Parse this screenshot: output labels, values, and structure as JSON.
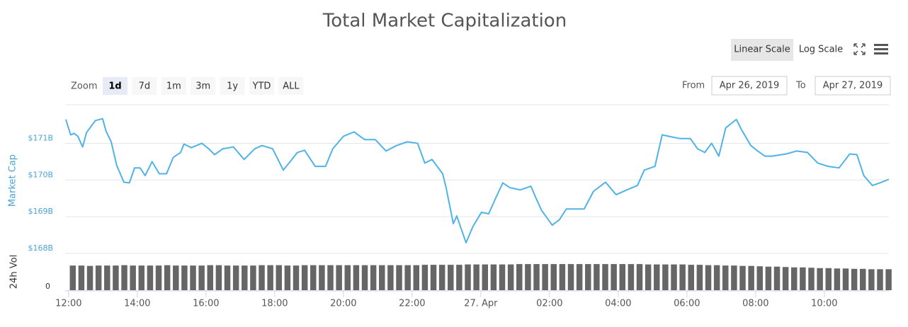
{
  "chart_data": [
    {
      "type": "line",
      "title": "Total Market Capitalization",
      "y_label": "Market Cap",
      "color": "#4fb3e6",
      "grid": true,
      "x": [
        11.92,
        12.06,
        12.16,
        12.27,
        12.41,
        12.52,
        12.78,
        12.99,
        13.09,
        13.24,
        13.4,
        13.61,
        13.77,
        13.92,
        14.08,
        14.23,
        14.43,
        14.64,
        14.85,
        15.05,
        15.26,
        15.36,
        15.57,
        15.88,
        16.08,
        16.25,
        16.49,
        16.8,
        17.11,
        17.42,
        17.63,
        17.94,
        18.25,
        18.45,
        18.66,
        18.87,
        19.18,
        19.48,
        19.69,
        20.0,
        20.31,
        20.62,
        20.93,
        21.24,
        21.55,
        21.86,
        22.16,
        22.37,
        22.58,
        22.89,
        22.99,
        23.2,
        23.3,
        23.57,
        23.77,
        24.02,
        24.23,
        24.43,
        24.64,
        24.85,
        25.15,
        25.46,
        25.61,
        25.77,
        26.08,
        26.29,
        26.49,
        26.8,
        27.01,
        27.28,
        27.63,
        27.94,
        28.25,
        28.56,
        28.76,
        29.07,
        29.28,
        29.48,
        29.79,
        30.1,
        30.31,
        30.52,
        30.72,
        30.93,
        31.13,
        31.44,
        31.59,
        31.86,
        32.06,
        32.27,
        32.47,
        32.89,
        33.2,
        33.51,
        33.81,
        34.12,
        34.43,
        34.74,
        34.95,
        35.15,
        35.4,
        35.67,
        35.88
      ],
      "values": [
        171.65,
        171.23,
        171.27,
        171.19,
        170.9,
        171.29,
        171.62,
        171.67,
        171.33,
        171.04,
        170.4,
        169.94,
        169.92,
        170.33,
        170.33,
        170.12,
        170.5,
        170.17,
        170.17,
        170.62,
        170.75,
        170.98,
        170.88,
        171.0,
        170.85,
        170.69,
        170.85,
        170.9,
        170.56,
        170.85,
        170.94,
        170.85,
        170.27,
        170.5,
        170.75,
        170.81,
        170.37,
        170.37,
        170.85,
        171.19,
        171.31,
        171.1,
        171.1,
        170.79,
        170.94,
        171.04,
        171.0,
        170.46,
        170.56,
        170.17,
        169.79,
        168.81,
        169.02,
        168.29,
        168.73,
        169.12,
        169.08,
        169.5,
        169.92,
        169.79,
        169.73,
        169.83,
        169.5,
        169.17,
        168.77,
        168.92,
        169.21,
        169.21,
        169.21,
        169.69,
        169.94,
        169.6,
        169.73,
        169.85,
        170.27,
        170.37,
        171.23,
        171.19,
        171.13,
        171.13,
        170.85,
        170.75,
        171.0,
        170.65,
        171.42,
        171.65,
        171.37,
        170.94,
        170.79,
        170.65,
        170.65,
        170.71,
        170.79,
        170.75,
        170.46,
        170.37,
        170.33,
        170.71,
        170.69,
        170.12,
        169.85,
        169.94,
        170.02
      ],
      "xlim": [
        11.9,
        35.88
      ],
      "xticks": [
        {
          "value": 12,
          "label": "12:00"
        },
        {
          "value": 14,
          "label": "14:00"
        },
        {
          "value": 16,
          "label": "16:00"
        },
        {
          "value": 18,
          "label": "18:00"
        },
        {
          "value": 20,
          "label": "20:00"
        },
        {
          "value": 22,
          "label": "22:00"
        },
        {
          "value": 24,
          "label": "27. Apr"
        },
        {
          "value": 26,
          "label": "02:00"
        },
        {
          "value": 28,
          "label": "04:00"
        },
        {
          "value": 30,
          "label": "06:00"
        },
        {
          "value": 32,
          "label": "08:00"
        },
        {
          "value": 34,
          "label": "10:00"
        }
      ],
      "ylim": [
        168,
        172.05
      ],
      "yticks": [
        {
          "value": 168,
          "label": "$168B"
        },
        {
          "value": 169,
          "label": "$169B"
        },
        {
          "value": 170,
          "label": "$170B"
        },
        {
          "value": 171,
          "label": "$171B"
        }
      ]
    },
    {
      "type": "bar",
      "y_label": "24h Vol",
      "color": "#666666",
      "x": [
        12,
        12.25,
        12.5,
        12.75,
        13,
        13.25,
        13.5,
        13.75,
        14,
        14.25,
        14.5,
        14.75,
        15,
        15.25,
        15.5,
        15.75,
        16,
        16.25,
        16.5,
        16.75,
        17,
        17.25,
        17.5,
        17.75,
        18,
        18.25,
        18.5,
        18.75,
        19,
        19.25,
        19.5,
        19.75,
        20,
        20.25,
        20.5,
        20.75,
        21,
        21.25,
        21.5,
        21.75,
        22,
        22.25,
        22.5,
        22.75,
        23,
        23.25,
        23.5,
        23.75,
        24,
        24.25,
        24.5,
        24.75,
        25,
        25.25,
        25.5,
        25.75,
        26,
        26.25,
        26.5,
        26.75,
        27,
        27.25,
        27.5,
        27.75,
        28,
        28.25,
        28.5,
        28.75,
        29,
        29.25,
        29.5,
        29.75,
        30,
        30.25,
        30.5,
        30.75,
        31,
        31.25,
        31.5,
        31.75,
        32,
        32.25,
        32.5,
        32.75,
        33,
        33.25,
        33.5,
        33.75,
        34,
        34.25,
        34.5,
        34.75,
        35,
        35.25,
        35.5,
        35.75
      ],
      "values": [
        67,
        67,
        66,
        67,
        67,
        67,
        68,
        67,
        67,
        67,
        67,
        68,
        67,
        67,
        67,
        67,
        68,
        68,
        67,
        67,
        67,
        67,
        68,
        68,
        68,
        67,
        67,
        68,
        68,
        68,
        68,
        68,
        68,
        68,
        68,
        68,
        68,
        68,
        68,
        68,
        68,
        69,
        69,
        69,
        69,
        69,
        70,
        70,
        70,
        70,
        70,
        70,
        71,
        71,
        71,
        71,
        71,
        71,
        71,
        71,
        71,
        71,
        71,
        71,
        71,
        71,
        71,
        70,
        70,
        70,
        70,
        70,
        69,
        69,
        68,
        68,
        67,
        67,
        66,
        66,
        65,
        64,
        64,
        63,
        62,
        62,
        61,
        60,
        60,
        59,
        59,
        58,
        58,
        57,
        57,
        57
      ],
      "ylim": [
        0,
        100
      ],
      "yticks": [
        0
      ]
    }
  ],
  "ui": {
    "scale_buttons": [
      "Linear Scale",
      "Log Scale"
    ],
    "scale_selected": 0,
    "zoom_label": "Zoom",
    "zoom_buttons": [
      "1d",
      "7d",
      "1m",
      "3m",
      "1y",
      "YTD",
      "ALL"
    ],
    "zoom_selected": 0,
    "from_label": "From",
    "from_date": "Apr 26, 2019",
    "to_label": "To",
    "to_date": "Apr 27, 2019"
  }
}
